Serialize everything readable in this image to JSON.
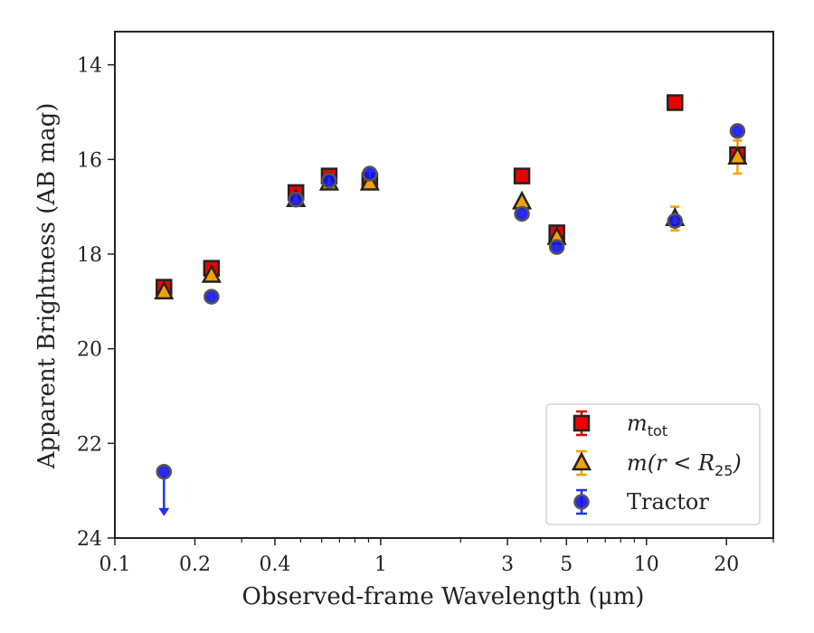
{
  "chart_data": {
    "type": "scatter",
    "title": "",
    "xlabel": "Observed-frame Wavelength (μm)",
    "ylabel": "Apparent Brightness (AB mag)",
    "xscale": "log",
    "xlim": [
      0.1,
      30
    ],
    "ylim": [
      24,
      13.3
    ],
    "y_inverted": true,
    "grid": false,
    "legend_position": "lower-right",
    "x_ticks": [
      {
        "value": 0.1,
        "label": "0.1"
      },
      {
        "value": 0.2,
        "label": "0.2"
      },
      {
        "value": 0.4,
        "label": "0.4"
      },
      {
        "value": 1,
        "label": "1"
      },
      {
        "value": 3,
        "label": "3"
      },
      {
        "value": 5,
        "label": "5"
      },
      {
        "value": 10,
        "label": "10"
      },
      {
        "value": 20,
        "label": "20"
      }
    ],
    "y_ticks": [
      {
        "value": 14,
        "label": "14"
      },
      {
        "value": 16,
        "label": "16"
      },
      {
        "value": 18,
        "label": "18"
      },
      {
        "value": 20,
        "label": "20"
      },
      {
        "value": 22,
        "label": "22"
      },
      {
        "value": 24,
        "label": "24"
      }
    ],
    "series": [
      {
        "name": "m_tot",
        "legend_main": "m",
        "legend_sub": "tot",
        "marker": "square",
        "color": "#ee0000",
        "errcolor": "#dd0000",
        "points": [
          {
            "x": 0.153,
            "y": 18.7
          },
          {
            "x": 0.231,
            "y": 18.3
          },
          {
            "x": 0.48,
            "y": 16.7
          },
          {
            "x": 0.64,
            "y": 16.35
          },
          {
            "x": 0.91,
            "y": 16.45
          },
          {
            "x": 3.4,
            "y": 16.35
          },
          {
            "x": 4.6,
            "y": 17.55
          },
          {
            "x": 12.8,
            "y": 14.8
          },
          {
            "x": 22.0,
            "y": 15.9
          }
        ]
      },
      {
        "name": "m(r < R25)",
        "legend_main": "m(r < R",
        "legend_sub": "25",
        "legend_close": ")",
        "marker": "triangle",
        "color": "#f5a000",
        "errcolor": "#f5a000",
        "points": [
          {
            "x": 0.153,
            "y": 18.8
          },
          {
            "x": 0.231,
            "y": 18.45
          },
          {
            "x": 0.48,
            "y": 16.85
          },
          {
            "x": 0.64,
            "y": 16.5
          },
          {
            "x": 0.91,
            "y": 16.5
          },
          {
            "x": 3.4,
            "y": 16.9
          },
          {
            "x": 4.6,
            "y": 17.65
          },
          {
            "x": 12.8,
            "y": 17.25,
            "err": 0.25
          },
          {
            "x": 22.0,
            "y": 15.95,
            "err": 0.35
          }
        ]
      },
      {
        "name": "Tractor",
        "legend_main": "Tractor",
        "marker": "circle",
        "color": "#1111ee",
        "errcolor": "#2233ee",
        "points": [
          {
            "x": 0.153,
            "y": 22.6,
            "upper_limit": true
          },
          {
            "x": 0.231,
            "y": 18.9
          },
          {
            "x": 0.48,
            "y": 16.85
          },
          {
            "x": 0.64,
            "y": 16.45
          },
          {
            "x": 0.91,
            "y": 16.3
          },
          {
            "x": 3.4,
            "y": 17.15
          },
          {
            "x": 4.6,
            "y": 17.85
          },
          {
            "x": 12.8,
            "y": 17.3
          },
          {
            "x": 22.0,
            "y": 15.4
          }
        ]
      }
    ]
  }
}
